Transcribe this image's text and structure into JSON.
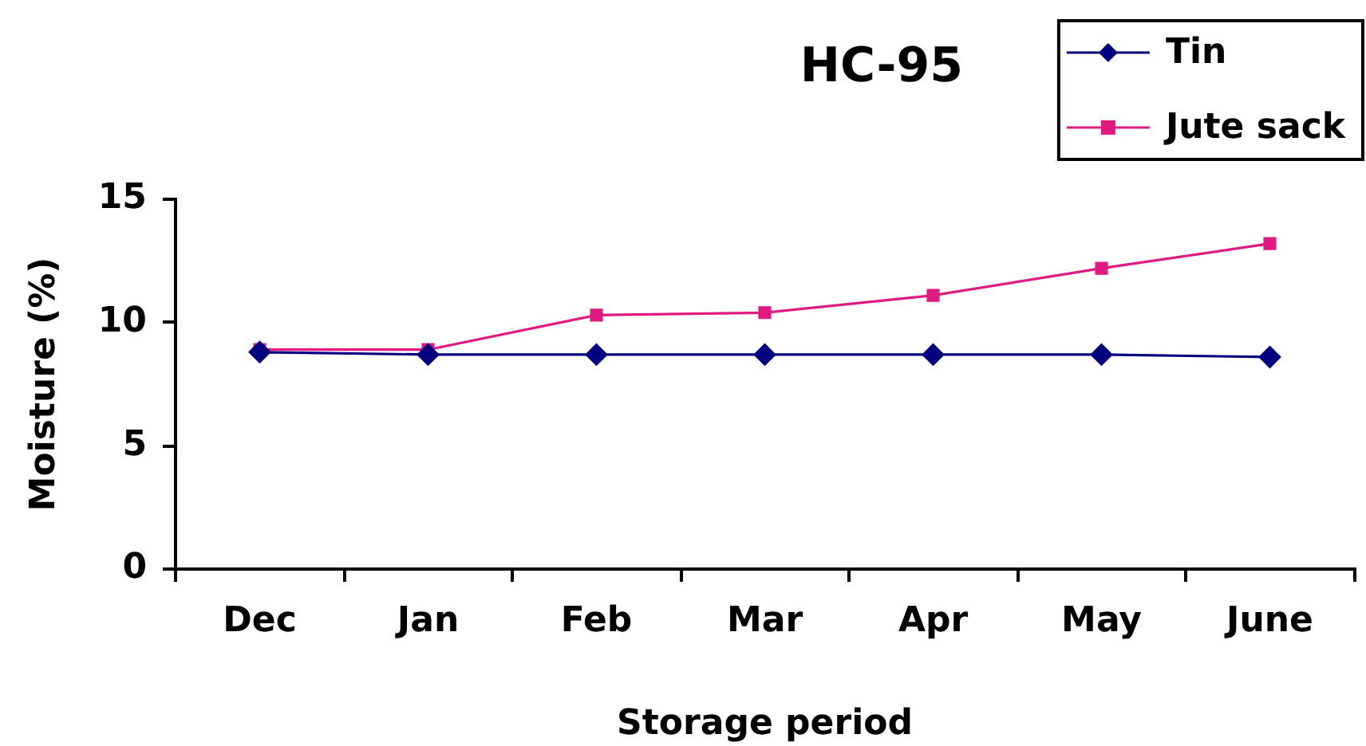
{
  "chart_data": {
    "type": "line",
    "title": "HC-95",
    "xlabel": "Storage period",
    "ylabel": "Moisture (%)",
    "categories": [
      "Dec",
      "Jan",
      "Feb",
      "Mar",
      "Apr",
      "May",
      "June"
    ],
    "series": [
      {
        "name": "Tin",
        "color": "#000080",
        "marker": "diamond",
        "values": [
          8.8,
          8.7,
          8.7,
          8.7,
          8.7,
          8.7,
          8.6
        ]
      },
      {
        "name": "Jute sack",
        "color": "#e01a80",
        "marker": "square",
        "values": [
          8.9,
          8.9,
          10.3,
          10.4,
          11.1,
          12.2,
          13.2
        ]
      }
    ],
    "ylim": [
      0,
      15
    ],
    "yticks": [
      0,
      5,
      10,
      15
    ],
    "grid": false,
    "legend": "top right",
    "line_style": "solid"
  }
}
